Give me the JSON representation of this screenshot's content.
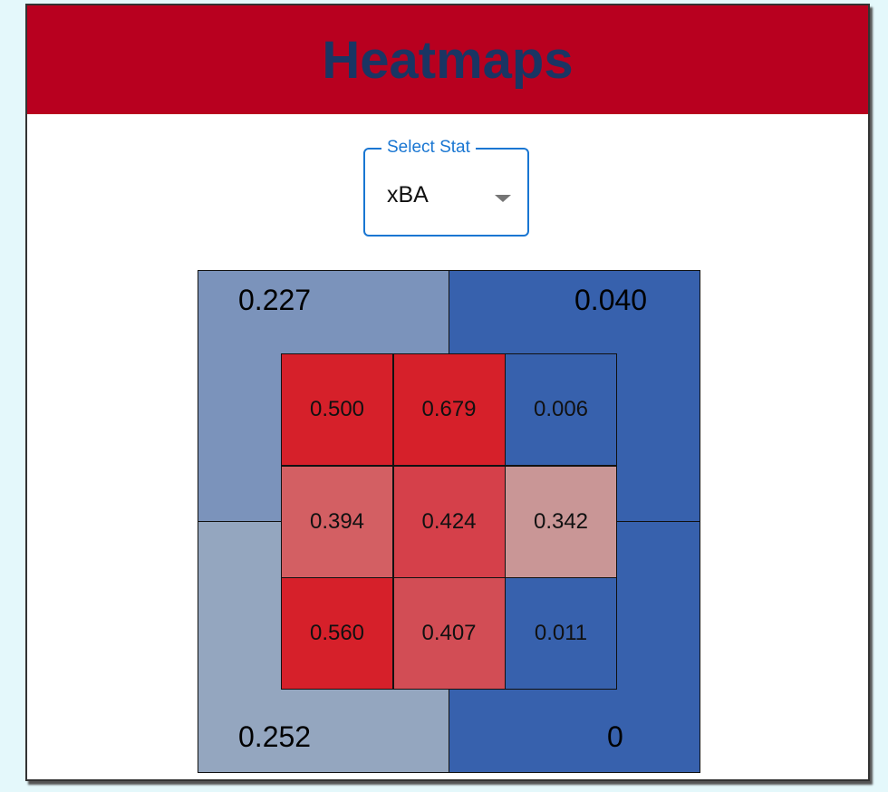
{
  "header": {
    "title": "Heatmaps"
  },
  "select": {
    "label": "Select Stat",
    "value": "xBA"
  },
  "heatmap": {
    "outer": [
      "0.227",
      "0.040",
      "0.252",
      "0"
    ],
    "inner": [
      [
        "0.500",
        "0.679",
        "0.006"
      ],
      [
        "0.394",
        "0.424",
        "0.342"
      ],
      [
        "0.560",
        "0.407",
        "0.011"
      ]
    ]
  }
}
